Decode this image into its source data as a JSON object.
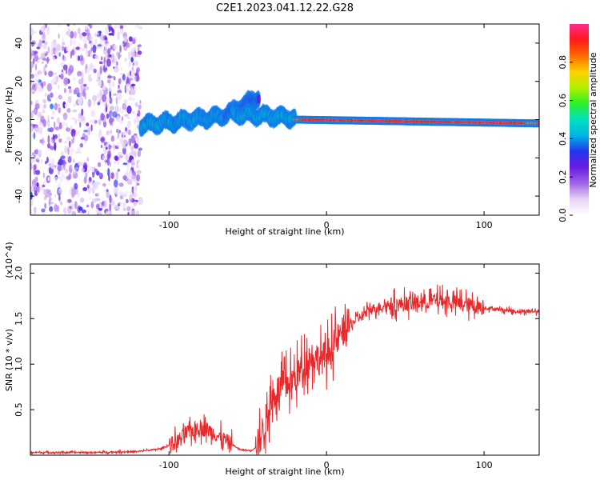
{
  "title": "C2E1.2023.041.12.22.G28",
  "chart_data": [
    {
      "type": "heatmap",
      "name": "spectrogram",
      "xlabel": "Height of straight line (km)",
      "ylabel": "Frequency (Hz)",
      "xlim": [
        -188,
        135
      ],
      "ylim": [
        -50,
        50
      ],
      "xticks": [
        -100,
        0,
        100
      ],
      "xtick_labels": [
        "-100",
        "0",
        "100"
      ],
      "yticks": [
        -40,
        -20,
        0,
        20,
        40
      ],
      "ytick_labels": [
        "-40",
        "-20",
        "0",
        "20",
        "40"
      ],
      "colorbar": {
        "label": "Normalized spectral amplitude",
        "range": [
          0,
          1
        ],
        "ticks": [
          0.0,
          0.2,
          0.4,
          0.6,
          0.8
        ],
        "tick_labels": [
          "0.0",
          "0.2",
          "0.4",
          "0.6",
          "0.8"
        ],
        "colormap": [
          "#ffffff",
          "#e6d4f5",
          "#a064e6",
          "#6a1be0",
          "#2233ee",
          "#00b4e6",
          "#00e0c0",
          "#28f028",
          "#b4f000",
          "#ffd000",
          "#ff6a00",
          "#ff1a1a",
          "#ff2a8a"
        ]
      },
      "regions": [
        {
          "x": [
            -188,
            -118
          ],
          "freq_center": 0,
          "freq_spread": 50,
          "amplitude": 0.15,
          "note": "noise"
        },
        {
          "x": [
            -118,
            -65
          ],
          "freq_center": [
            -3,
            2
          ],
          "amplitude": 0.45
        },
        {
          "x": [
            -65,
            -43
          ],
          "freq_center": [
            2,
            12
          ],
          "amplitude": 0.35,
          "note": "rising branch"
        },
        {
          "x": [
            -60,
            -20
          ],
          "freq_center": [
            3,
            1
          ],
          "amplitude": 0.45
        },
        {
          "x": [
            -20,
            135
          ],
          "freq_center": [
            0,
            -2
          ],
          "amplitude": 0.85,
          "note": "carrier line"
        }
      ]
    },
    {
      "type": "line",
      "name": "snr",
      "xlabel": "Height of straight line (km)",
      "ylabel": "SNR (10 * v/v)",
      "yscale_label": "(x10^4)",
      "xlim": [
        -188,
        135
      ],
      "ylim": [
        0,
        2.1
      ],
      "xticks": [
        -100,
        0,
        100
      ],
      "xtick_labels": [
        "-100",
        "0",
        "100"
      ],
      "yticks": [
        0.5,
        1.0,
        1.5,
        2.0
      ],
      "ytick_labels": [
        "0.5",
        "1.0",
        "1.5",
        "2.0"
      ],
      "color": "#e8282a",
      "series": [
        {
          "name": "SNR",
          "x": [
            -188,
            -150,
            -120,
            -105,
            -95,
            -88,
            -82,
            -75,
            -68,
            -60,
            -55,
            -48,
            -44,
            -40,
            -36,
            -32,
            -28,
            -24,
            -20,
            -16,
            -12,
            -8,
            -4,
            0,
            4,
            8,
            12,
            16,
            20,
            24,
            28,
            32,
            36,
            40,
            50,
            60,
            70,
            80,
            90,
            100,
            110,
            120,
            135
          ],
          "y": [
            0.03,
            0.03,
            0.04,
            0.07,
            0.15,
            0.25,
            0.3,
            0.28,
            0.2,
            0.12,
            0.06,
            0.05,
            0.1,
            0.3,
            0.55,
            0.7,
            0.75,
            0.8,
            0.85,
            0.95,
            1.05,
            1.1,
            1.05,
            1.1,
            1.2,
            1.3,
            1.4,
            1.45,
            1.5,
            1.55,
            1.6,
            1.62,
            1.64,
            1.65,
            1.66,
            1.68,
            1.7,
            1.68,
            1.65,
            1.62,
            1.6,
            1.58,
            1.58
          ]
        }
      ]
    }
  ]
}
